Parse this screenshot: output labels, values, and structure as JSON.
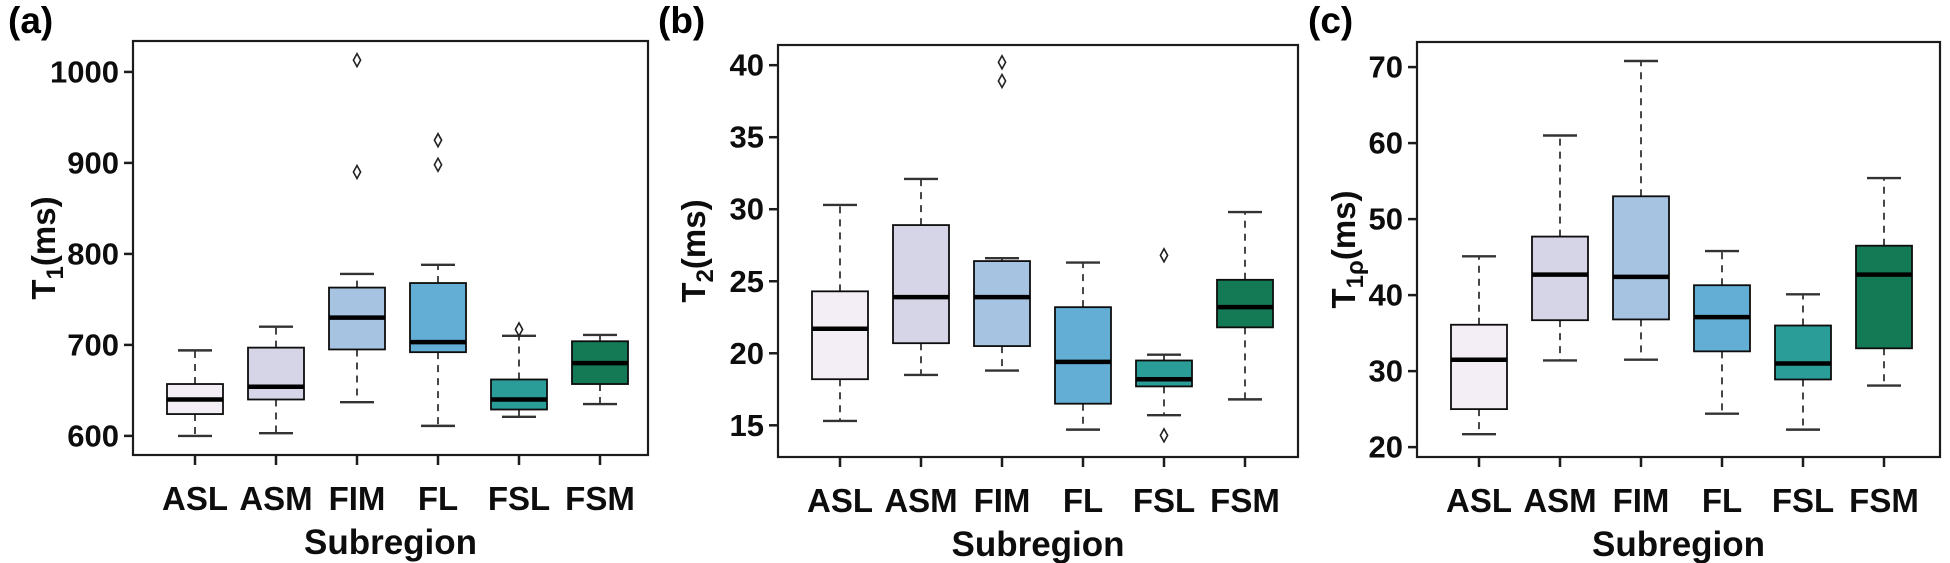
{
  "figure": {
    "background": "#ffffff",
    "text_color": "#0d0d0d"
  },
  "chart_data": [
    {
      "type": "boxplot",
      "panel_label": "(a)",
      "ylabel": {
        "base": "T",
        "sub": "1",
        "unit": "(ms)"
      },
      "xlabel": "Subregion",
      "categories": [
        "ASL",
        "ASM",
        "FIM",
        "FL",
        "FSL",
        "FSM"
      ],
      "yticks": [
        600,
        700,
        800,
        900,
        1000
      ],
      "ylim": [
        579,
        1034
      ],
      "grid": false,
      "legend": null,
      "boxes": [
        {
          "category": "ASL",
          "low": 600,
          "q1": 624,
          "median": 640,
          "q3": 657,
          "high": 694,
          "outliers": [],
          "color": "#f3edf5"
        },
        {
          "category": "ASM",
          "low": 603,
          "q1": 640,
          "median": 654,
          "q3": 697,
          "high": 720,
          "outliers": [],
          "color": "#d6d5e8"
        },
        {
          "category": "FIM",
          "low": 637,
          "q1": 695,
          "median": 730,
          "q3": 763,
          "high": 778,
          "outliers": [
            890,
            1013
          ],
          "color": "#a6c3e1"
        },
        {
          "category": "FL",
          "low": 611,
          "q1": 692,
          "median": 703,
          "q3": 768,
          "high": 788,
          "outliers": [
            898,
            925
          ],
          "color": "#63aed4"
        },
        {
          "category": "FSL",
          "low": 621,
          "q1": 629,
          "median": 640,
          "q3": 662,
          "high": 710,
          "outliers": [
            717
          ],
          "color": "#2b9d99"
        },
        {
          "category": "FSM",
          "low": 635,
          "q1": 657,
          "median": 680,
          "q3": 704,
          "high": 711,
          "outliers": [],
          "color": "#147a56"
        }
      ]
    },
    {
      "type": "boxplot",
      "panel_label": "(b)",
      "ylabel": {
        "base": "T",
        "sub": "2",
        "unit": "(ms)"
      },
      "xlabel": "Subregion",
      "categories": [
        "ASL",
        "ASM",
        "FIM",
        "FL",
        "FSL",
        "FSM"
      ],
      "yticks": [
        15,
        20,
        25,
        30,
        35,
        40
      ],
      "ylim": [
        12.8,
        41.4
      ],
      "grid": false,
      "legend": null,
      "boxes": [
        {
          "category": "ASL",
          "low": 15.3,
          "q1": 18.2,
          "median": 21.7,
          "q3": 24.3,
          "high": 30.3,
          "outliers": [],
          "color": "#f3edf5"
        },
        {
          "category": "ASM",
          "low": 18.5,
          "q1": 20.7,
          "median": 23.9,
          "q3": 28.9,
          "high": 32.1,
          "outliers": [],
          "color": "#d6d5e8"
        },
        {
          "category": "FIM",
          "low": 18.8,
          "q1": 20.5,
          "median": 23.9,
          "q3": 26.4,
          "high": 26.6,
          "outliers": [
            38.9,
            40.2
          ],
          "color": "#a6c3e1"
        },
        {
          "category": "FL",
          "low": 14.7,
          "q1": 16.5,
          "median": 19.4,
          "q3": 23.2,
          "high": 26.3,
          "outliers": [],
          "color": "#63aed4"
        },
        {
          "category": "FSL",
          "low": 15.7,
          "q1": 17.7,
          "median": 18.2,
          "q3": 19.5,
          "high": 19.9,
          "outliers": [
            14.3,
            26.8
          ],
          "color": "#2b9d99"
        },
        {
          "category": "FSM",
          "low": 16.8,
          "q1": 21.8,
          "median": 23.2,
          "q3": 25.1,
          "high": 29.8,
          "outliers": [],
          "color": "#147a56"
        }
      ]
    },
    {
      "type": "boxplot",
      "panel_label": "(c)",
      "ylabel": {
        "base": "T",
        "sub": "1ρ",
        "unit": "(ms)"
      },
      "xlabel": "Subregion",
      "categories": [
        "ASL",
        "ASM",
        "FIM",
        "FL",
        "FSL",
        "FSM"
      ],
      "yticks": [
        20,
        30,
        40,
        50,
        60,
        70
      ],
      "ylim": [
        18.7,
        73.3
      ],
      "grid": false,
      "legend": null,
      "boxes": [
        {
          "category": "ASL",
          "low": 21.7,
          "q1": 25.0,
          "median": 31.5,
          "q3": 36.1,
          "high": 45.1,
          "outliers": [],
          "color": "#f3edf5"
        },
        {
          "category": "ASM",
          "low": 31.4,
          "q1": 36.7,
          "median": 42.7,
          "q3": 47.7,
          "high": 61.0,
          "outliers": [],
          "color": "#d6d5e8"
        },
        {
          "category": "FIM",
          "low": 31.5,
          "q1": 36.8,
          "median": 42.4,
          "q3": 53.0,
          "high": 70.8,
          "outliers": [],
          "color": "#a6c3e1"
        },
        {
          "category": "FL",
          "low": 24.4,
          "q1": 32.6,
          "median": 37.1,
          "q3": 41.3,
          "high": 45.8,
          "outliers": [],
          "color": "#63aed4"
        },
        {
          "category": "FSL",
          "low": 22.3,
          "q1": 28.9,
          "median": 31.0,
          "q3": 36.0,
          "high": 40.1,
          "outliers": [],
          "color": "#2b9d99"
        },
        {
          "category": "FSM",
          "low": 28.1,
          "q1": 33.0,
          "median": 42.7,
          "q3": 46.5,
          "high": 55.4,
          "outliers": [],
          "color": "#147a56"
        }
      ]
    }
  ]
}
